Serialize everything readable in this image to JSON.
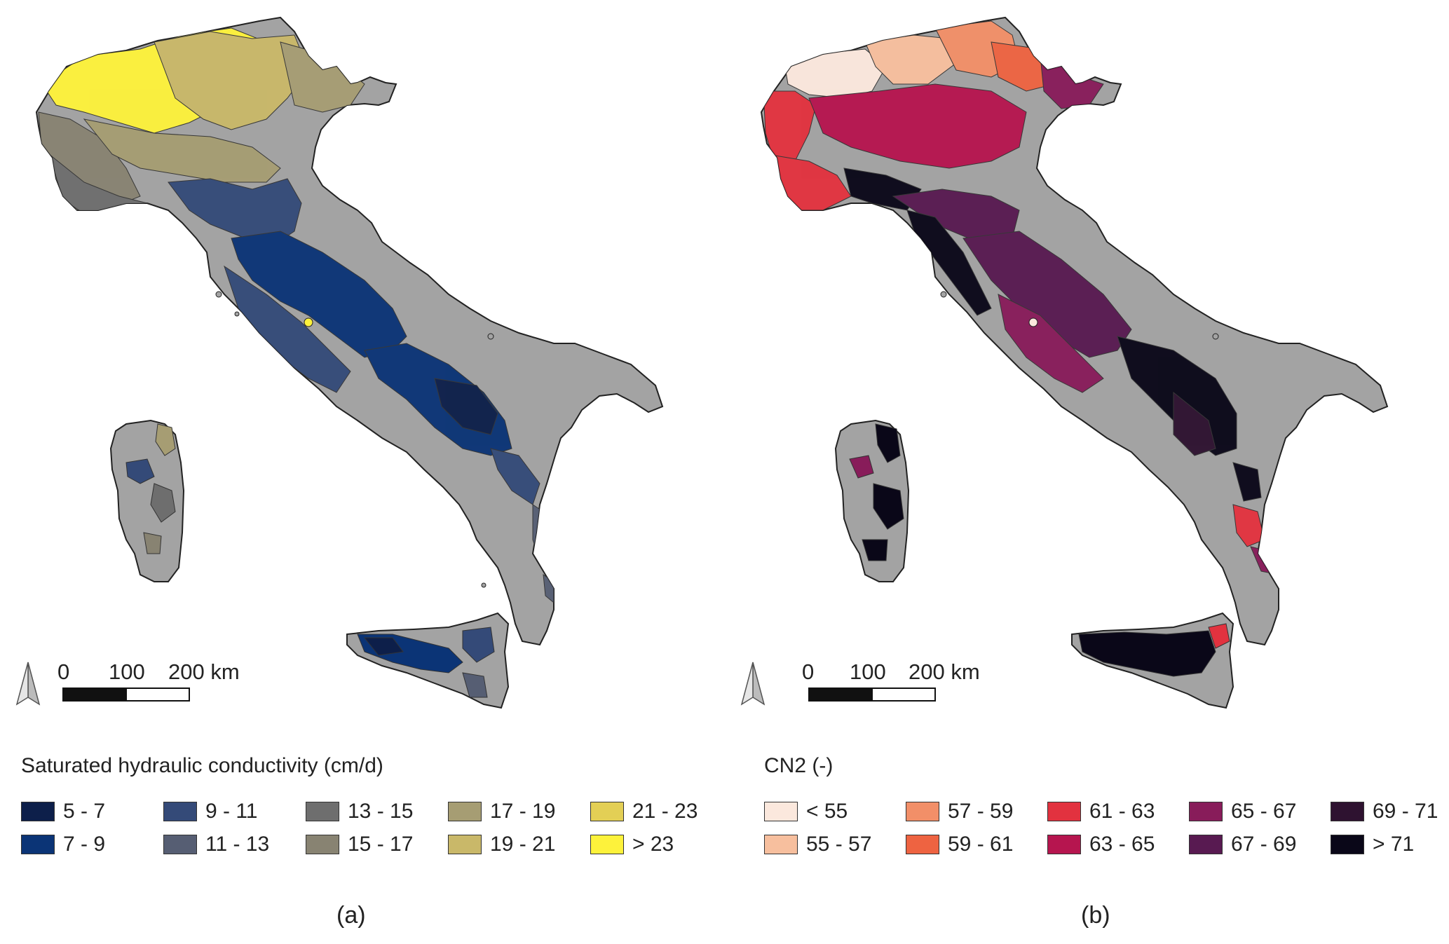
{
  "panels": [
    {
      "id": "a",
      "caption": "(a)",
      "scale_labels": [
        "0",
        "100",
        "200 km"
      ],
      "legend_title": "Saturated hydraulic conductivity (cm/d)",
      "legend": [
        {
          "label": "5 - 7",
          "color": "#0d1f4a"
        },
        {
          "label": "7 - 9",
          "color": "#0b3476"
        },
        {
          "label": "9 - 11",
          "color": "#344a78"
        },
        {
          "label": "11 - 13",
          "color": "#565e73"
        },
        {
          "label": "13 - 15",
          "color": "#6e6e6e"
        },
        {
          "label": "15 - 17",
          "color": "#888372"
        },
        {
          "label": "17 - 19",
          "color": "#a69d73"
        },
        {
          "label": "19 - 21",
          "color": "#c9b869"
        },
        {
          "label": "21 - 23",
          "color": "#e3cf55"
        },
        {
          "label": "> 23",
          "color": "#fdf23b"
        }
      ]
    },
    {
      "id": "b",
      "caption": "(b)",
      "scale_labels": [
        "0",
        "100",
        "200 km"
      ],
      "legend_title": "CN2 (-)",
      "legend": [
        {
          "label": "< 55",
          "color": "#fbe8dd"
        },
        {
          "label": "55 - 57",
          "color": "#f7bf9e"
        },
        {
          "label": "57 - 59",
          "color": "#f28f68"
        },
        {
          "label": "59 - 61",
          "color": "#ee6341"
        },
        {
          "label": "61 - 63",
          "color": "#e2323f"
        },
        {
          "label": "63 - 65",
          "color": "#b6154f"
        },
        {
          "label": "65 - 67",
          "color": "#881c5a"
        },
        {
          "label": "67 - 69",
          "color": "#581a51"
        },
        {
          "label": "69 - 71",
          "color": "#2e1230"
        },
        {
          "label": "> 71",
          "color": "#0a0718"
        }
      ]
    }
  ],
  "base_color": "#a3a3a3",
  "outline_color": "#222222"
}
